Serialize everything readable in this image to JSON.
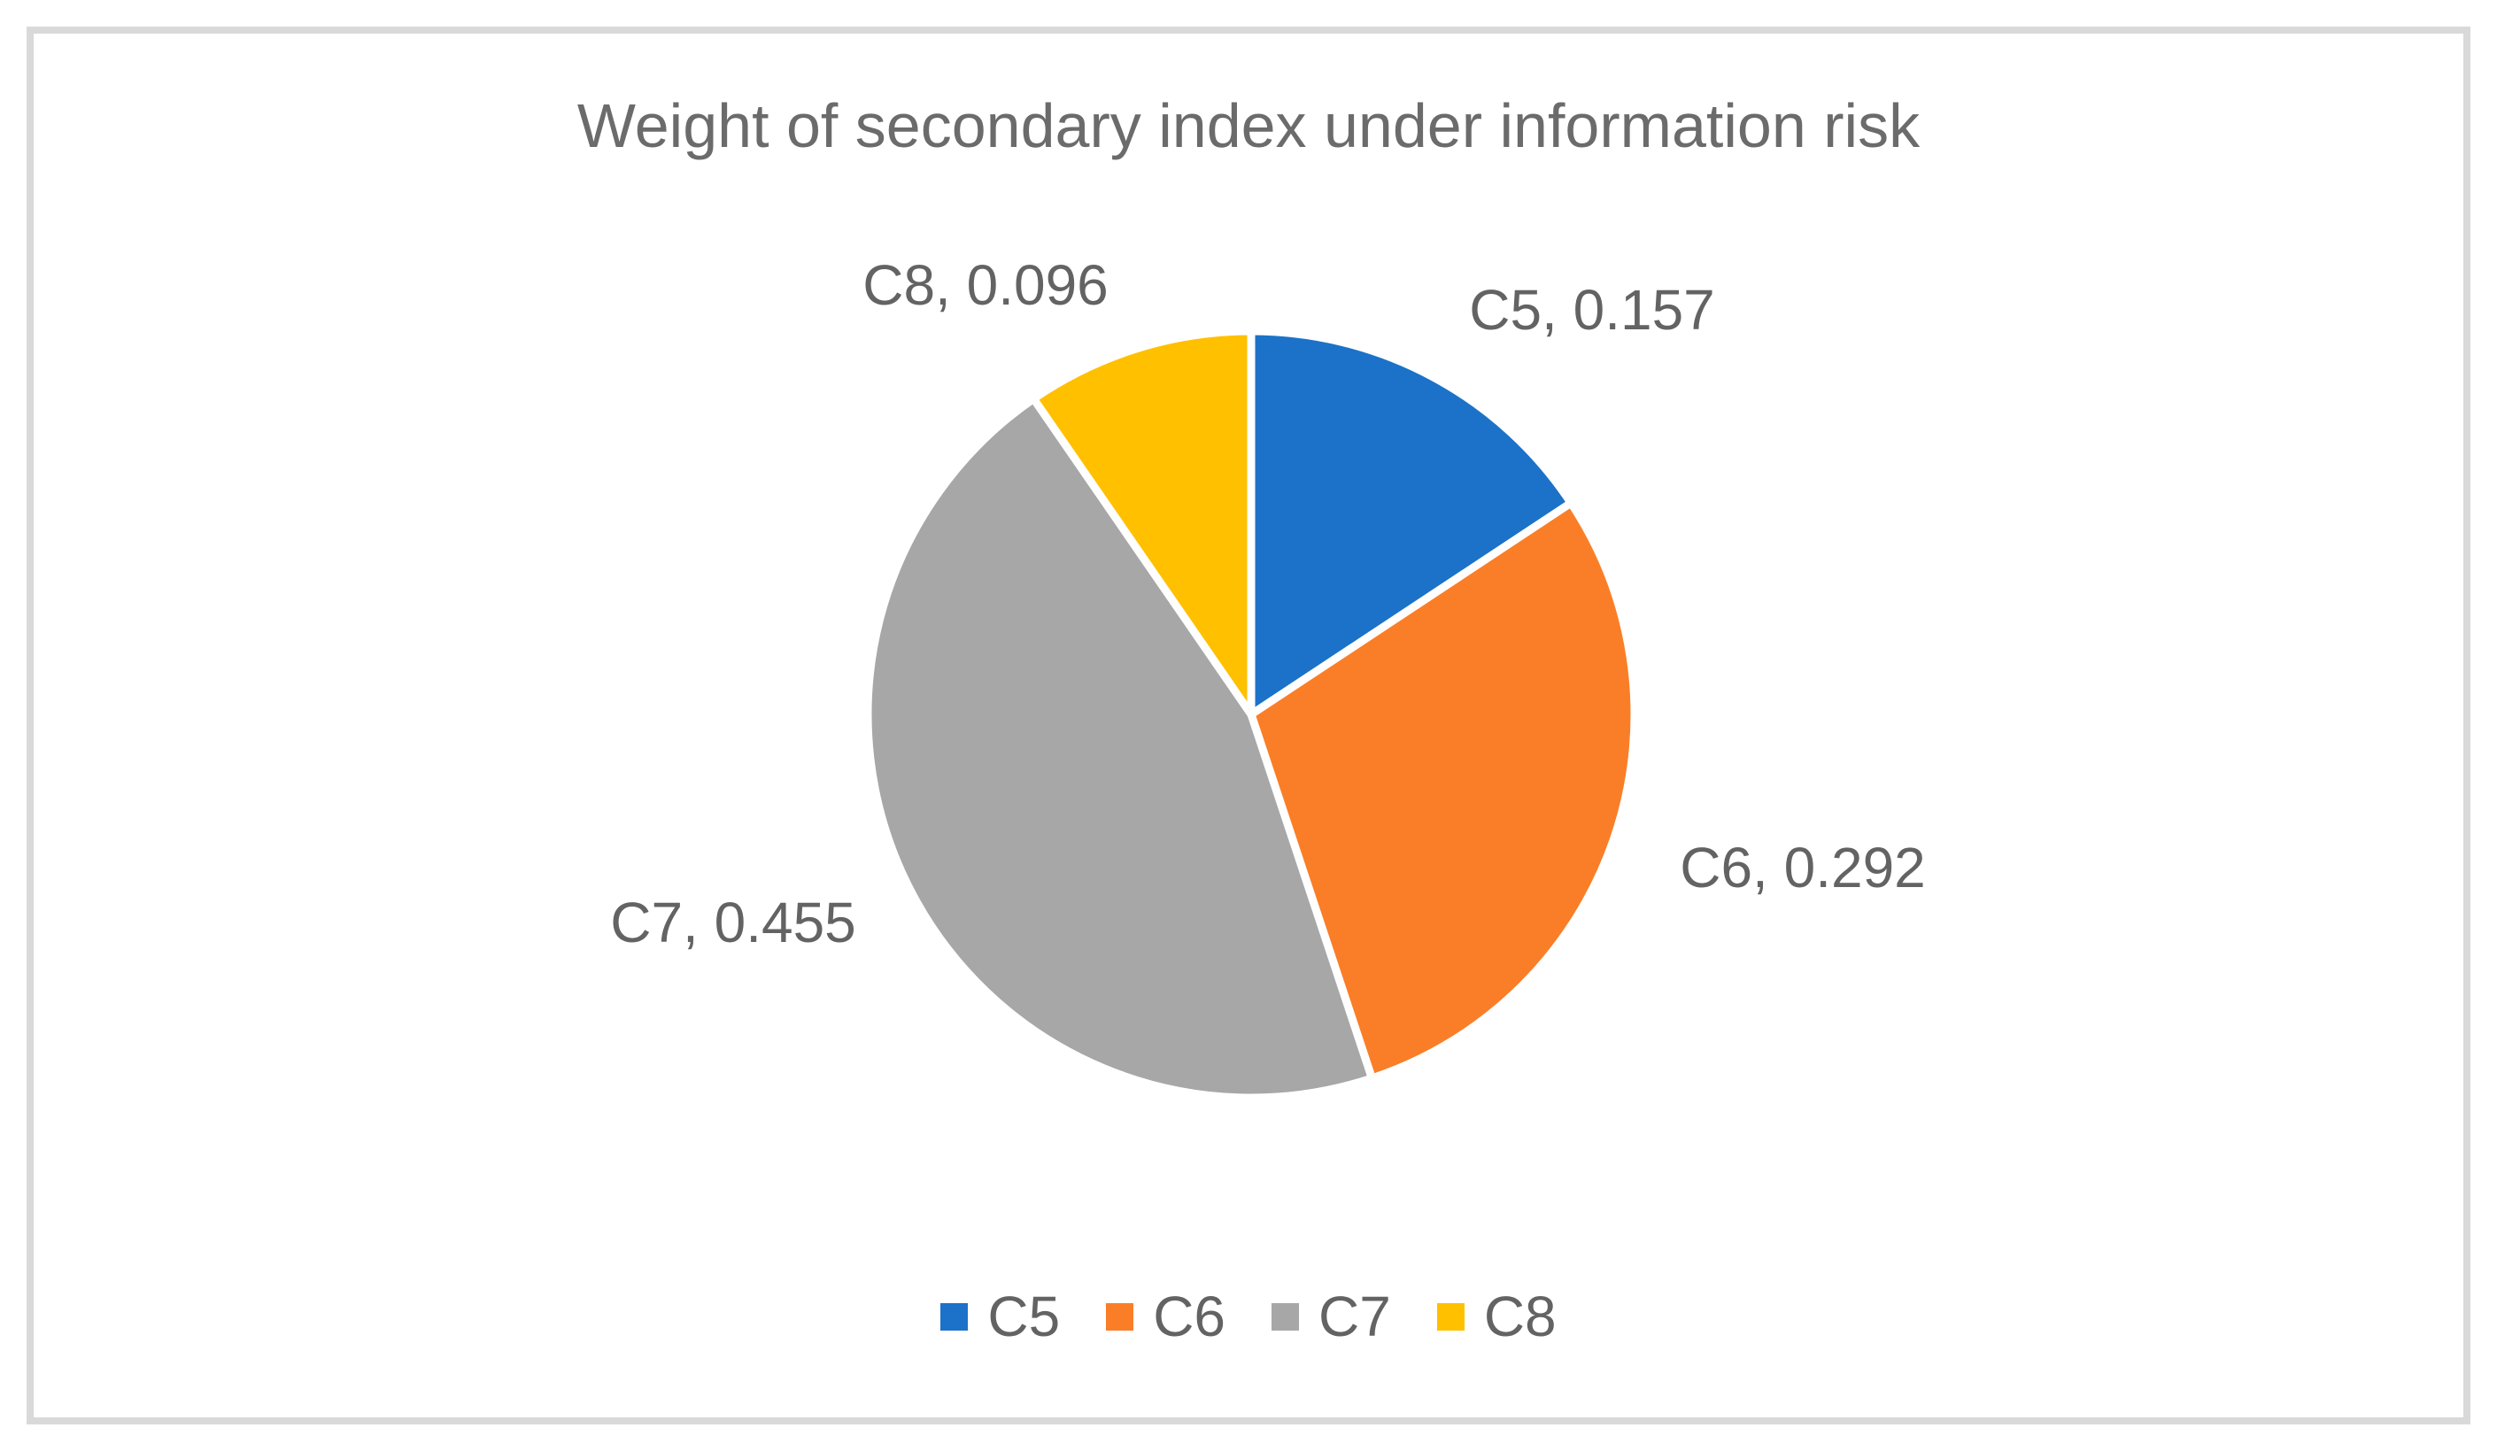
{
  "chart_data": {
    "type": "pie",
    "title": "Weight of secondary index under information risk",
    "categories": [
      "C5",
      "C6",
      "C7",
      "C8"
    ],
    "values": [
      0.157,
      0.292,
      0.455,
      0.096
    ],
    "colors": [
      "#1B72C8",
      "#FA7E27",
      "#A7A7A7",
      "#FFC000"
    ],
    "data_labels": [
      "C5, 0.157",
      "C6, 0.292",
      "C7, 0.455",
      "C8, 0.096"
    ],
    "legend": [
      {
        "label": "C5",
        "color": "#1B72C8"
      },
      {
        "label": "C6",
        "color": "#FA7E27"
      },
      {
        "label": "C7",
        "color": "#A7A7A7"
      },
      {
        "label": "C8",
        "color": "#FFC000"
      }
    ],
    "legend_position": "bottom",
    "start_angle_deg": 0,
    "direction": "clockwise",
    "slice_border_color": "#FFFFFF"
  }
}
